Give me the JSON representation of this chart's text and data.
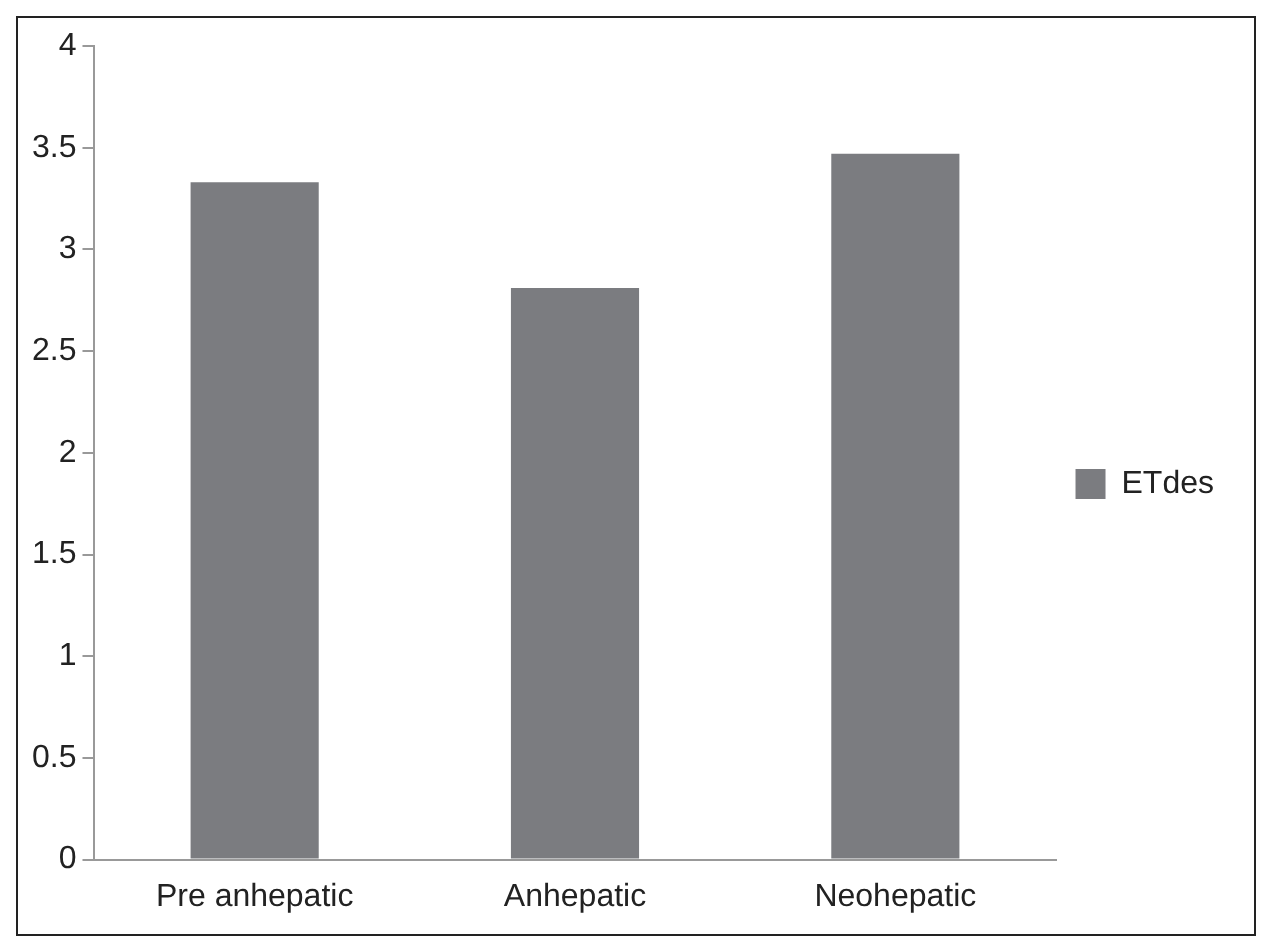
{
  "chart_data": {
    "type": "bar",
    "categories": [
      "Pre anhepatic",
      "Anhepatic",
      "Neohepatic"
    ],
    "series": [
      {
        "name": "ETdes",
        "color": "#7b7c80",
        "values": [
          3.33,
          2.81,
          3.47
        ]
      }
    ],
    "ylim": [
      0,
      4
    ],
    "yticks": [
      0,
      0.5,
      1,
      1.5,
      2,
      2.5,
      3,
      3.5,
      4
    ],
    "grid": false,
    "legend": "right"
  }
}
